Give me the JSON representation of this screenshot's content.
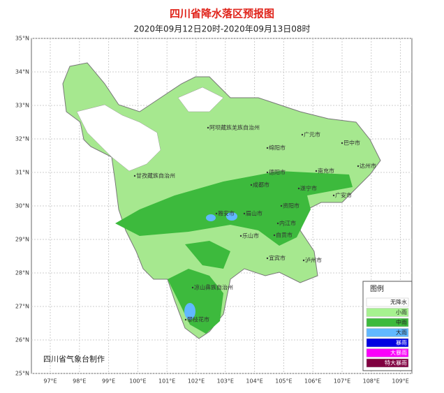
{
  "header": {
    "title": "四川省降水落区预报图",
    "subtitle": "2020年09月12日20时-2020年09月13日08时"
  },
  "lat_labels": [
    "35°N",
    "34°N",
    "33°N",
    "32°N",
    "31°N",
    "30°N",
    "29°N",
    "28°N",
    "27°N",
    "26°N",
    "25°N"
  ],
  "lon_labels": [
    "97°E",
    "98°E",
    "99°E",
    "100°E",
    "101°E",
    "102°E",
    "103°E",
    "104°E",
    "105°E",
    "106°E",
    "107°E",
    "108°E",
    "109°E"
  ],
  "places": [
    "阿坝藏族羌族自治州",
    "甘孜藏族自治州",
    "凉山彝族自治州",
    "攀枝花市",
    "绵阳市",
    "广元市",
    "巴中市",
    "达州市",
    "德阳市",
    "南充市",
    "成都市",
    "遂宁市",
    "广安市",
    "资阳市",
    "雅安市",
    "眉山市",
    "乐山市",
    "内江市",
    "自贡市",
    "宜宾市",
    "泸州市"
  ],
  "legend": {
    "title": "图例",
    "items": [
      {
        "label": "无降水",
        "color": "#ffffff"
      },
      {
        "label": "小雨",
        "color": "#a6f28f"
      },
      {
        "label": "中雨",
        "color": "#3dba3d"
      },
      {
        "label": "大雨",
        "color": "#61b8ff"
      },
      {
        "label": "暴雨",
        "color": "#0000e1"
      },
      {
        "label": "大暴雨",
        "color": "#fa00fa"
      },
      {
        "label": "特大暴雨",
        "color": "#800040"
      }
    ]
  },
  "credit": "四川省气象台制作"
}
